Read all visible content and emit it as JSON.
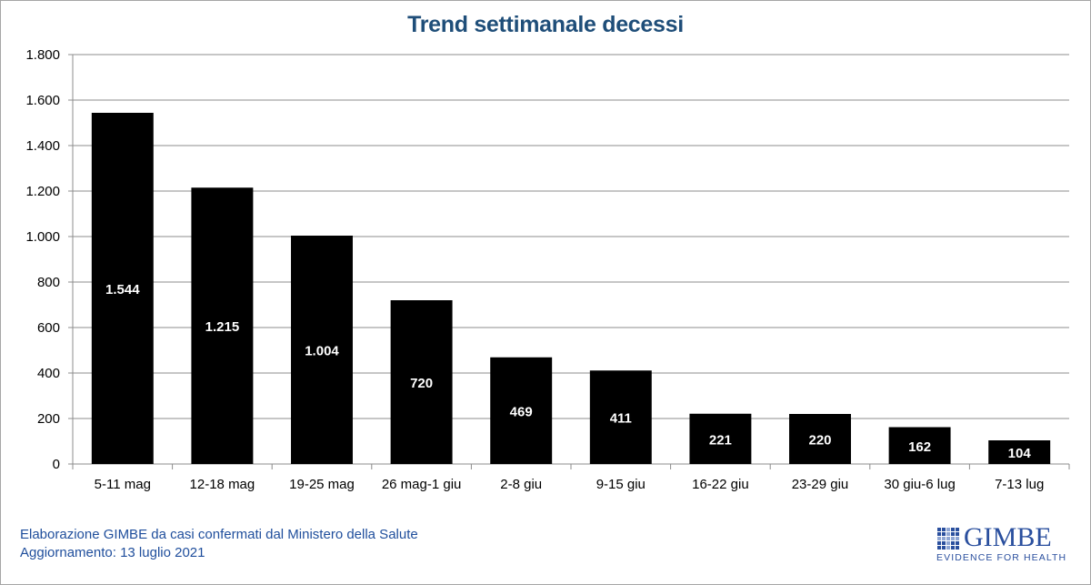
{
  "chart_data": {
    "type": "bar",
    "title": "Trend settimanale decessi",
    "categories": [
      "5-11 mag",
      "12-18 mag",
      "19-25 mag",
      "26 mag-1 giu",
      "2-8 giu",
      "9-15 giu",
      "16-22 giu",
      "23-29 giu",
      "30 giu-6 lug",
      "7-13 lug"
    ],
    "values": [
      1544,
      1215,
      1004,
      720,
      469,
      411,
      221,
      220,
      162,
      104
    ],
    "value_labels": [
      "1.544",
      "1.215",
      "1.004",
      "720",
      "469",
      "411",
      "221",
      "220",
      "162",
      "104"
    ],
    "ylim": [
      0,
      1800
    ],
    "yticks": [
      0,
      200,
      400,
      600,
      800,
      1000,
      1200,
      1400,
      1600,
      1800
    ],
    "ytick_labels": [
      "0",
      "200",
      "400",
      "600",
      "800",
      "1.000",
      "1.200",
      "1.400",
      "1.600",
      "1.800"
    ],
    "xlabel": "",
    "ylabel": "",
    "grid": true,
    "bar_color": "#000000",
    "label_color": "#ffffff"
  },
  "footer": {
    "source": "Elaborazione GIMBE da casi confermati dal Ministero della Salute",
    "updated": "Aggiornamento: 13 luglio 2021"
  },
  "logo": {
    "name": "GIMBE",
    "tagline": "EVIDENCE FOR HEALTH",
    "color": "#2a4f9e"
  }
}
